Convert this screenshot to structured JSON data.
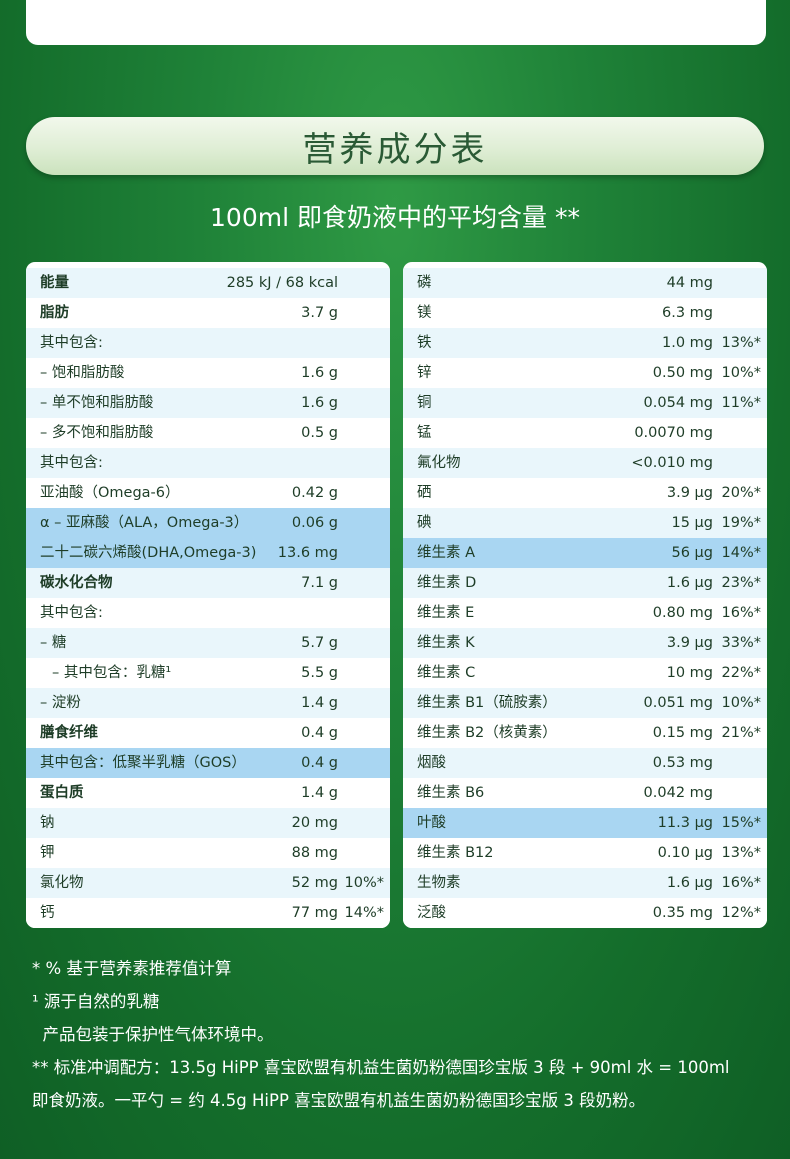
{
  "title": "营养成分表",
  "subtitle": "100ml 即食奶液中的平均含量 **",
  "left_rows": [
    {
      "name": "能量",
      "value": "285 kJ / 68 kcal",
      "pct": "",
      "bold": true
    },
    {
      "name": "脂肪",
      "value": "3.7 g",
      "pct": "",
      "bold": true
    },
    {
      "name": "其中包含:",
      "value": "",
      "pct": ""
    },
    {
      "name": "– 饱和脂肪酸",
      "value": "1.6 g",
      "pct": ""
    },
    {
      "name": "– 单不饱和脂肪酸",
      "value": "1.6 g",
      "pct": ""
    },
    {
      "name": "– 多不饱和脂肪酸",
      "value": "0.5 g",
      "pct": ""
    },
    {
      "name": "其中包含:",
      "value": "",
      "pct": ""
    },
    {
      "name": "亚油酸（Omega-6）",
      "value": "0.42 g",
      "pct": ""
    },
    {
      "name": "α – 亚麻酸（ALA，Omega-3）",
      "value": "0.06 g",
      "pct": "",
      "highlight": true
    },
    {
      "name": "二十二碳六烯酸(DHA,Omega-3)",
      "value": "13.6 mg",
      "pct": "",
      "highlight": true
    },
    {
      "name": "碳水化合物",
      "value": "7.1 g",
      "pct": "",
      "bold": true
    },
    {
      "name": "其中包含:",
      "value": "",
      "pct": ""
    },
    {
      "name": "– 糖",
      "value": "5.7 g",
      "pct": ""
    },
    {
      "name": "– 其中包含：乳糖¹",
      "value": "5.5 g",
      "pct": "",
      "indent": true
    },
    {
      "name": "– 淀粉",
      "value": "1.4 g",
      "pct": ""
    },
    {
      "name": "膳食纤维",
      "value": "0.4 g",
      "pct": "",
      "bold": true
    },
    {
      "name": "其中包含：低聚半乳糖（GOS）",
      "value": "0.4 g",
      "pct": "",
      "highlight": true
    },
    {
      "name": "蛋白质",
      "value": "1.4 g",
      "pct": "",
      "bold": true
    },
    {
      "name": "钠",
      "value": "20 mg",
      "pct": ""
    },
    {
      "name": "钾",
      "value": "88 mg",
      "pct": ""
    },
    {
      "name": "氯化物",
      "value": "52 mg",
      "pct": "10%*"
    },
    {
      "name": "钙",
      "value": "77 mg",
      "pct": "14%*"
    }
  ],
  "right_rows": [
    {
      "name": "磷",
      "value": "44 mg",
      "pct": ""
    },
    {
      "name": "镁",
      "value": "6.3 mg",
      "pct": ""
    },
    {
      "name": "铁",
      "value": "1.0 mg",
      "pct": "13%*"
    },
    {
      "name": "锌",
      "value": "0.50 mg",
      "pct": "10%*"
    },
    {
      "name": "铜",
      "value": "0.054 mg",
      "pct": "11%*"
    },
    {
      "name": "锰",
      "value": "0.0070 mg",
      "pct": ""
    },
    {
      "name": "氟化物",
      "value": "<0.010 mg",
      "pct": ""
    },
    {
      "name": "硒",
      "value": "3.9 μg",
      "pct": "20%*"
    },
    {
      "name": "碘",
      "value": "15 μg",
      "pct": "19%*"
    },
    {
      "name": "维生素 A",
      "value": "56 μg",
      "pct": "14%*",
      "highlight": true
    },
    {
      "name": "维生素 D",
      "value": "1.6 μg",
      "pct": "23%*"
    },
    {
      "name": "维生素 E",
      "value": "0.80 mg",
      "pct": "16%*"
    },
    {
      "name": "维生素 K",
      "value": "3.9 μg",
      "pct": "33%*"
    },
    {
      "name": "维生素 C",
      "value": "10 mg",
      "pct": "22%*"
    },
    {
      "name": "维生素 B1（硫胺素）",
      "value": "0.051 mg",
      "pct": "10%*"
    },
    {
      "name": "维生素 B2（核黄素）",
      "value": "0.15 mg",
      "pct": "21%*"
    },
    {
      "name": "烟酸",
      "value": "0.53 mg",
      "pct": ""
    },
    {
      "name": "维生素 B6",
      "value": "0.042 mg",
      "pct": ""
    },
    {
      "name": "叶酸",
      "value": "11.3 μg",
      "pct": "15%*",
      "highlight": true
    },
    {
      "name": "维生素 B12",
      "value": "0.10 μg",
      "pct": "13%*"
    },
    {
      "name": "生物素",
      "value": "1.6 μg",
      "pct": "16%*"
    },
    {
      "name": "泛酸",
      "value": "0.35 mg",
      "pct": "12%*"
    }
  ],
  "notes": [
    "* % 基于营养素推荐值计算",
    "¹ 源于自然的乳糖",
    "  产品包装于保护性气体环境中。",
    "** 标准冲调配方：13.5g HiPP 喜宝欧盟有机益生菌奶粉德国珍宝版 3 段 + 90ml 水 = 100ml",
    "即食奶液。一平勺 = 约 4.5g HiPP 喜宝欧盟有机益生菌奶粉德国珍宝版 3 段奶粉。"
  ]
}
